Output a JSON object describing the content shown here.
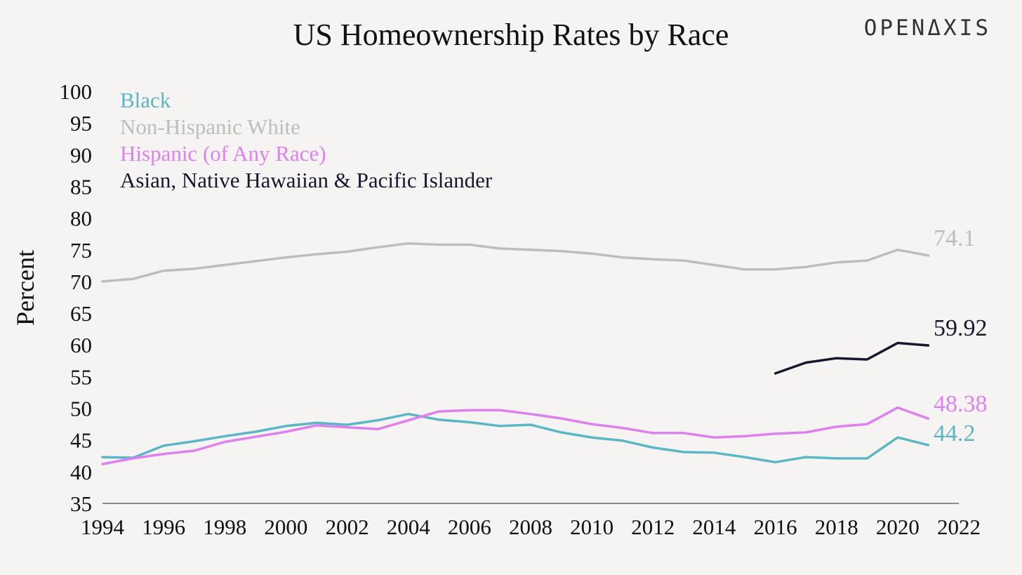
{
  "brand": "OPENΔXIS",
  "chart_data": {
    "type": "line",
    "title": "US Homeownership Rates by Race",
    "xlabel": "",
    "ylabel": "Percent",
    "xlim": [
      1994,
      2022
    ],
    "ylim": [
      35,
      100
    ],
    "x_ticks": [
      1994,
      1996,
      1998,
      2000,
      2002,
      2004,
      2006,
      2008,
      2010,
      2012,
      2014,
      2016,
      2018,
      2020,
      2022
    ],
    "y_ticks": [
      35,
      40,
      45,
      50,
      55,
      60,
      65,
      70,
      75,
      80,
      85,
      90,
      95,
      100
    ],
    "legend_position": "top-left",
    "grid": false,
    "series": [
      {
        "name": "Black",
        "color": "#5bb6c6",
        "end_label": "44.2",
        "x": [
          1994,
          1995,
          1996,
          1997,
          1998,
          1999,
          2000,
          2001,
          2002,
          2003,
          2004,
          2005,
          2006,
          2007,
          2008,
          2009,
          2010,
          2011,
          2012,
          2013,
          2014,
          2015,
          2016,
          2017,
          2018,
          2019,
          2020,
          2021
        ],
        "values": [
          42.3,
          42.2,
          44.1,
          44.8,
          45.6,
          46.3,
          47.2,
          47.7,
          47.4,
          48.1,
          49.1,
          48.2,
          47.8,
          47.2,
          47.4,
          46.2,
          45.4,
          44.9,
          43.8,
          43.1,
          43.0,
          42.3,
          41.5,
          42.3,
          42.1,
          42.1,
          45.4,
          44.2
        ]
      },
      {
        "name": "Non-Hispanic White",
        "color": "#bdbdbd",
        "end_label": "74.1",
        "x": [
          1994,
          1995,
          1996,
          1997,
          1998,
          1999,
          2000,
          2001,
          2002,
          2003,
          2004,
          2005,
          2006,
          2007,
          2008,
          2009,
          2010,
          2011,
          2012,
          2013,
          2014,
          2015,
          2016,
          2017,
          2018,
          2019,
          2020,
          2021
        ],
        "values": [
          70.0,
          70.4,
          71.7,
          72.0,
          72.6,
          73.2,
          73.8,
          74.3,
          74.7,
          75.4,
          76.0,
          75.8,
          75.8,
          75.2,
          75.0,
          74.8,
          74.4,
          73.8,
          73.5,
          73.3,
          72.6,
          71.9,
          71.9,
          72.3,
          73.0,
          73.3,
          75.0,
          74.1
        ]
      },
      {
        "name": "Hispanic (of Any Race)",
        "color": "#df80ef",
        "end_label": "48.38",
        "x": [
          1994,
          1995,
          1996,
          1997,
          1998,
          1999,
          2000,
          2001,
          2002,
          2003,
          2004,
          2005,
          2006,
          2007,
          2008,
          2009,
          2010,
          2011,
          2012,
          2013,
          2014,
          2015,
          2016,
          2017,
          2018,
          2019,
          2020,
          2021
        ],
        "values": [
          41.2,
          42.1,
          42.8,
          43.3,
          44.7,
          45.5,
          46.3,
          47.3,
          47.0,
          46.7,
          48.1,
          49.5,
          49.7,
          49.7,
          49.1,
          48.4,
          47.5,
          46.9,
          46.1,
          46.1,
          45.4,
          45.6,
          46.0,
          46.2,
          47.1,
          47.5,
          50.1,
          48.38
        ]
      },
      {
        "name": "Asian, Native Hawaiian & Pacific Islander",
        "color": "#17172f",
        "end_label": "59.92",
        "x": [
          2016,
          2017,
          2018,
          2019,
          2020,
          2021
        ],
        "values": [
          55.5,
          57.2,
          57.9,
          57.7,
          60.3,
          59.92
        ]
      }
    ]
  }
}
